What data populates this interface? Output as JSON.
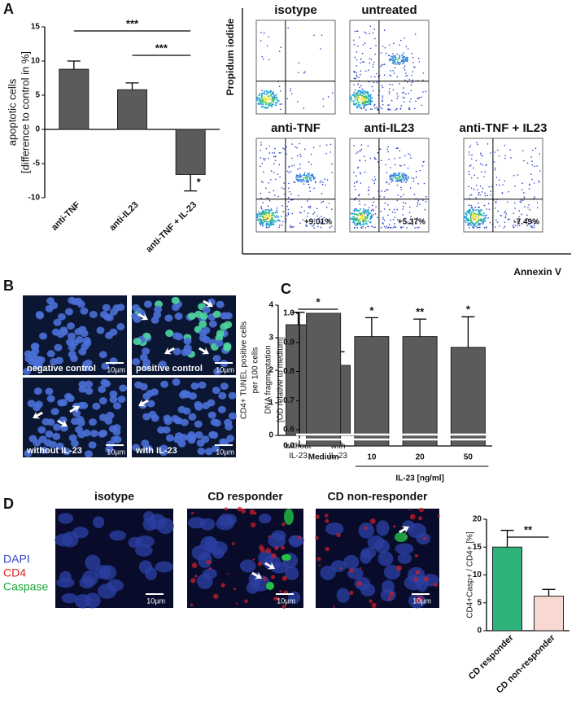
{
  "panel_labels": [
    "A",
    "B",
    "C",
    "D"
  ],
  "chart_data": [
    {
      "type": "bar",
      "ylabel": [
        "apoptotic cells",
        "[difference to control in %]"
      ],
      "categories": [
        "anti-TNF",
        "anti-IL23",
        "anti-TNF + IL-23"
      ],
      "values": [
        8.8,
        5.8,
        -6.6
      ],
      "errors": [
        1.2,
        1.0,
        2.4
      ],
      "color": "#5b5b5b",
      "ylim": [
        -10,
        15
      ],
      "yticks": [
        -10,
        -5,
        0,
        5,
        10,
        15
      ],
      "comparisons": [
        {
          "from": 0,
          "to": 2,
          "text": "***"
        },
        {
          "from": 1,
          "to": 2,
          "text": "***"
        }
      ],
      "bar_annotations": [
        {
          "index": 2,
          "text": "*"
        }
      ]
    },
    {
      "type": "bar",
      "ylabel": [
        "CD4+ TUNEL positive cells",
        "per 100 cells"
      ],
      "categories": [
        "without IL-23",
        "with IL-23"
      ],
      "values": [
        3.4,
        2.15
      ],
      "errors": [
        0.38,
        0.42
      ],
      "color": "#5b5b5b",
      "ylim": [
        0,
        4
      ],
      "yticks": [
        0,
        1,
        2,
        3,
        4
      ],
      "comparisons": [
        {
          "from": 0,
          "to": 1,
          "text": "*"
        }
      ]
    },
    {
      "type": "bar",
      "ylabel": [
        "DNA fragmentation",
        "[OD relative to medium]"
      ],
      "categories": [
        "Medium",
        "10",
        "20",
        "50"
      ],
      "xlabel": "IL-23 [ng/ml]",
      "values": [
        1.0,
        0.92,
        0.92,
        0.883
      ],
      "errors": [
        null,
        0.065,
        0.06,
        0.105
      ],
      "color": "#5b5b5b",
      "ylim": [
        0,
        1.0
      ],
      "ybreak": [
        0,
        0.6
      ],
      "yticks": [
        {
          "value": 0,
          "label": "0.0"
        },
        {
          "value": 0.6,
          "label": "0.6"
        },
        {
          "value": 0.7,
          "label": "0.7"
        },
        {
          "value": 0.8,
          "label": "0.8"
        },
        {
          "value": 0.9,
          "label": "0.9"
        },
        {
          "value": 1.0,
          "label": "1.0"
        }
      ],
      "bar_annotations": [
        {
          "index": 1,
          "text": "*"
        },
        {
          "index": 2,
          "text": "**"
        },
        {
          "index": 3,
          "text": "*"
        }
      ]
    },
    {
      "type": "bar",
      "ylabel": [
        "CD4+Casp+ / CD4+ [%]"
      ],
      "categories": [
        "CD responder",
        "CD non-responder"
      ],
      "values": [
        15,
        6.2
      ],
      "errors": [
        3.0,
        1.2
      ],
      "colors": [
        "#2db37a",
        "#f9d7d3"
      ],
      "ylim": [
        0,
        20
      ],
      "yticks": [
        0,
        5,
        10,
        15,
        20
      ],
      "comparisons": [
        {
          "from": 0,
          "to": 1,
          "text": "**"
        }
      ]
    }
  ],
  "flow_cytometry": {
    "y_label": "Propidum iodide",
    "x_label": "Annexin V",
    "plots": [
      {
        "title": "isotype"
      },
      {
        "title": "untreated"
      },
      {
        "title": "anti-TNF",
        "percent": "+9.01%"
      },
      {
        "title": "anti-IL23",
        "percent": "+5.37%"
      },
      {
        "title": "anti-TNF + IL23",
        "percent": "-7.49%"
      }
    ]
  },
  "tunel_images": [
    {
      "label": "negative control",
      "scale_bar": "10µm"
    },
    {
      "label": "positive control",
      "scale_bar": "10µm"
    },
    {
      "label": "without IL-23",
      "scale_bar": "10µm"
    },
    {
      "label": "with IL-23",
      "scale_bar": "10µm"
    }
  ],
  "confocal": {
    "legend": [
      "DAPI",
      "CD4",
      "Caspase"
    ],
    "images": [
      {
        "title": "isotype",
        "scale_bar": "10µm"
      },
      {
        "title": "CD responder",
        "scale_bar": "10µm"
      },
      {
        "title": "CD non-responder",
        "scale_bar": "10µm"
      }
    ]
  }
}
